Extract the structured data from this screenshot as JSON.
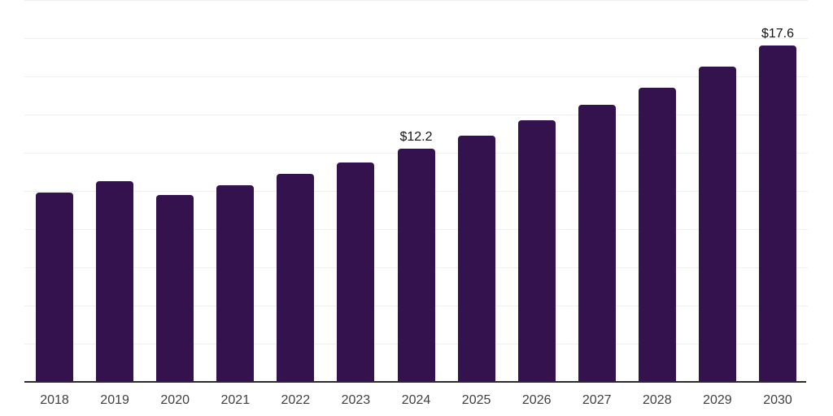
{
  "background": "#ffffff",
  "chart_data": {
    "type": "bar",
    "title": "",
    "xlabel": "",
    "ylabel": "",
    "categories": [
      "2018",
      "2019",
      "2020",
      "2021",
      "2022",
      "2023",
      "2024",
      "2025",
      "2026",
      "2027",
      "2028",
      "2029",
      "2030"
    ],
    "values": [
      9.9,
      10.5,
      9.8,
      10.3,
      10.9,
      11.5,
      12.2,
      12.9,
      13.7,
      14.5,
      15.4,
      16.5,
      17.6
    ],
    "point_labels": {
      "2024": "$12.2",
      "2030": "$17.6"
    },
    "ylim": [
      0,
      20
    ],
    "grid_step": 2,
    "grid": true,
    "legend": false,
    "bar_color": "#33124e",
    "grid_color": "#f0f0f0",
    "axis_color": "#2b2b2b",
    "tick_label_color": "#404040",
    "value_label_color": "#141414"
  }
}
